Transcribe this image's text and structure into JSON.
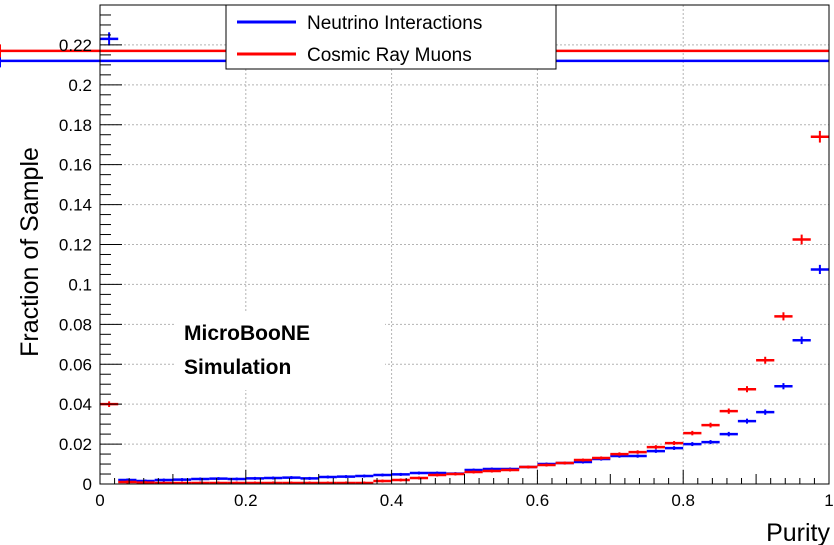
{
  "chart_data": {
    "type": "scatter",
    "title": "",
    "xlabel": "Purity",
    "ylabel": "Fraction of Sample",
    "xlim": [
      0,
      1
    ],
    "ylim": [
      0,
      0.24
    ],
    "x_ticks": [
      "0",
      "0.2",
      "0.4",
      "0.6",
      "0.8",
      "1"
    ],
    "y_ticks": [
      "0",
      "0.02",
      "0.04",
      "0.06",
      "0.08",
      "0.1",
      "0.12",
      "0.14",
      "0.16",
      "0.18",
      "0.2",
      "0.22"
    ],
    "x_tick_values": [
      0,
      0.2,
      0.4,
      0.6,
      0.8,
      1.0
    ],
    "y_tick_values": [
      0,
      0.02,
      0.04,
      0.06,
      0.08,
      0.1,
      0.12,
      0.14,
      0.16,
      0.18,
      0.2,
      0.22
    ],
    "grid": true,
    "legend_position": "top-center",
    "annotation": [
      "MicroBooNE",
      "Simulation"
    ],
    "bins": [
      0.0,
      0.025,
      0.05,
      0.075,
      0.1,
      0.125,
      0.15,
      0.175,
      0.2,
      0.225,
      0.25,
      0.275,
      0.3,
      0.325,
      0.35,
      0.375,
      0.4,
      0.425,
      0.45,
      0.475,
      0.5,
      0.525,
      0.55,
      0.575,
      0.6,
      0.625,
      0.65,
      0.675,
      0.7,
      0.725,
      0.75,
      0.775,
      0.8,
      0.825,
      0.85,
      0.875,
      0.9,
      0.925,
      0.95,
      0.975,
      1.0
    ],
    "series": [
      {
        "name": "Neutrino Interactions",
        "color": "#0000ff",
        "values": [
          0.223,
          0.002,
          0.0015,
          0.002,
          0.0022,
          0.0025,
          0.0027,
          0.0025,
          0.0028,
          0.003,
          0.0032,
          0.0028,
          0.0035,
          0.0037,
          0.004,
          0.0045,
          0.0048,
          0.0055,
          0.0055,
          0.0052,
          0.007,
          0.0075,
          0.0075,
          0.0085,
          0.01,
          0.0105,
          0.011,
          0.0125,
          0.014,
          0.014,
          0.0165,
          0.018,
          0.02,
          0.021,
          0.025,
          0.0315,
          0.036,
          0.049,
          0.072,
          0.1075,
          0.212
        ]
      },
      {
        "name": "Cosmic Ray Muons",
        "color": "#ff0000",
        "values": [
          0.04,
          0.001,
          0.0007,
          0.0005,
          0.0005,
          0.0005,
          0.0005,
          0.0005,
          0.0005,
          0.0005,
          0.0005,
          0.0005,
          0.0005,
          0.0005,
          0.0005,
          0.0015,
          0.002,
          0.003,
          0.0045,
          0.005,
          0.006,
          0.0065,
          0.007,
          0.0085,
          0.0095,
          0.0105,
          0.012,
          0.013,
          0.015,
          0.016,
          0.0185,
          0.0205,
          0.0255,
          0.0295,
          0.0365,
          0.0475,
          0.062,
          0.084,
          0.1225,
          0.174,
          0.217
        ]
      }
    ]
  }
}
